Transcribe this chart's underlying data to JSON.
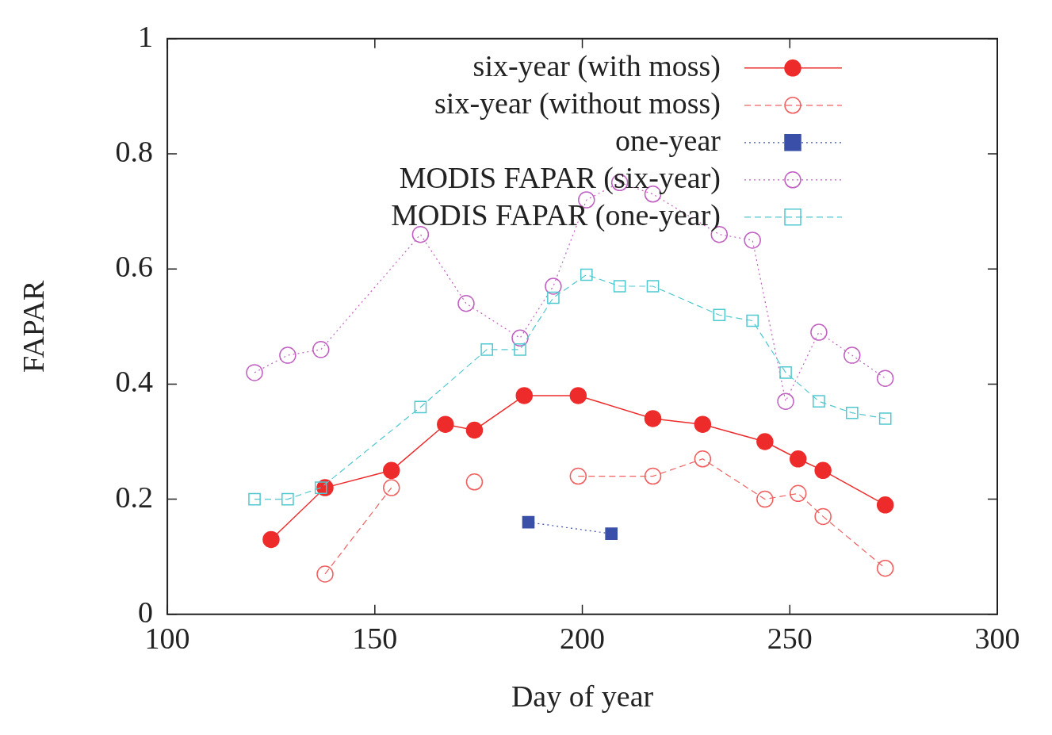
{
  "chart_data": {
    "type": "line",
    "xlabel": "Day of year",
    "ylabel": "FAPAR",
    "xlim": [
      100,
      300
    ],
    "xticks": [
      100,
      150,
      200,
      250,
      300
    ],
    "ylim": [
      0,
      1
    ],
    "yticks": [
      0,
      0.2,
      0.4,
      0.6,
      0.8,
      1
    ],
    "grid": false,
    "legend": "top right",
    "series": [
      {
        "name": "six-year (with moss)",
        "color": "#ee2b2b",
        "marker": "circle",
        "line_style": "solid",
        "x": [
          125,
          138,
          154,
          167,
          174,
          186,
          199,
          217,
          229,
          244,
          252,
          258,
          273
        ],
        "values": [
          0.13,
          0.22,
          0.25,
          0.33,
          0.32,
          0.38,
          0.38,
          0.34,
          0.33,
          0.3,
          0.27,
          0.25,
          0.19
        ]
      },
      {
        "name": "six-year (without moss)",
        "color": "#f06060",
        "marker": "circle",
        "line_style": "dashed",
        "x": [
          138,
          154,
          164,
          174,
          186,
          199,
          217,
          229,
          244,
          252,
          258,
          273
        ],
        "values": [
          0.07,
          0.22,
          null,
          0.23,
          null,
          0.24,
          0.24,
          0.27,
          0.2,
          0.21,
          0.17,
          0.08
        ]
      },
      {
        "name": "one-year",
        "color": "#3a50a8",
        "marker": "square",
        "line_style": "dotted",
        "x": [
          187,
          207
        ],
        "values": [
          0.16,
          0.14
        ]
      },
      {
        "name": "MODIS FAPAR (six-year)",
        "color": "#c060c0",
        "marker": "circle",
        "line_style": "dotted",
        "x": [
          121,
          129,
          137,
          161,
          172,
          185,
          193,
          201,
          209,
          217,
          233,
          241,
          249,
          257,
          265,
          273
        ],
        "values": [
          0.42,
          0.45,
          0.46,
          0.66,
          0.54,
          0.48,
          0.57,
          0.72,
          0.75,
          0.73,
          0.66,
          0.65,
          0.37,
          0.49,
          0.45,
          0.41
        ]
      },
      {
        "name": "MODIS FAPAR (one-year)",
        "color": "#50c8d0",
        "marker": "square",
        "line_style": "dashed",
        "x": [
          121,
          129,
          137,
          161,
          177,
          185,
          193,
          201,
          209,
          217,
          233,
          241,
          249,
          257,
          265,
          273
        ],
        "values": [
          0.2,
          0.2,
          0.22,
          0.36,
          0.46,
          0.46,
          0.55,
          0.59,
          0.57,
          0.57,
          0.52,
          0.51,
          0.42,
          0.37,
          0.35,
          0.34
        ]
      }
    ]
  }
}
